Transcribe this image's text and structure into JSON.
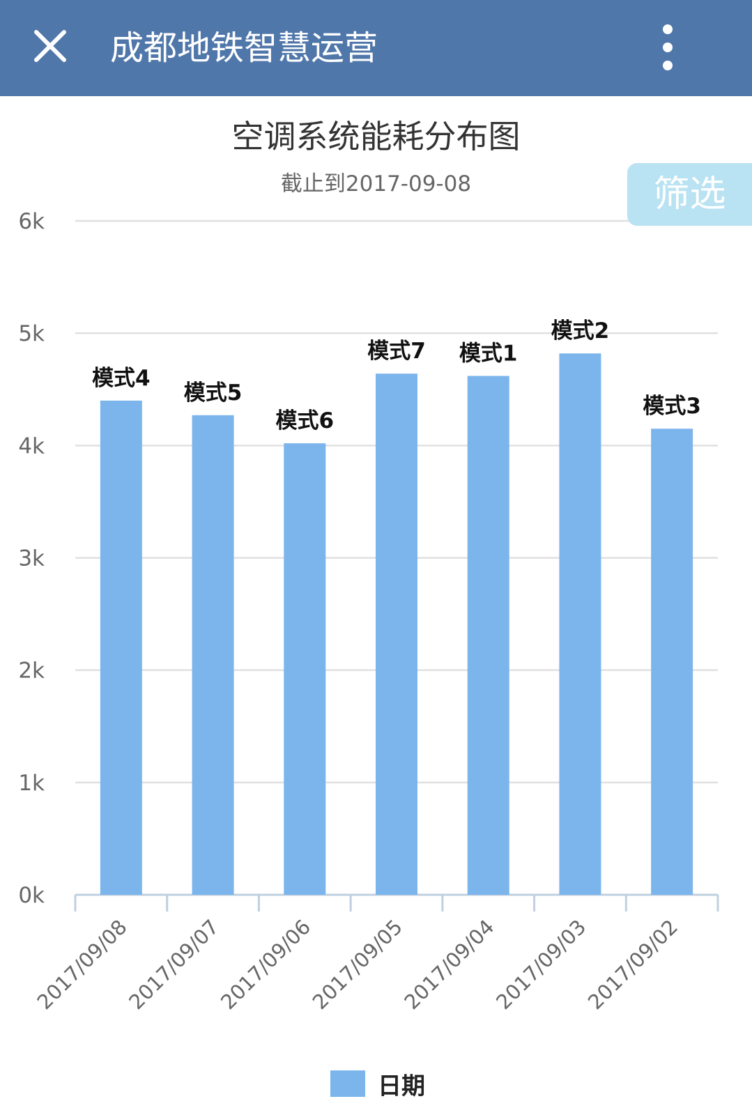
{
  "appbar": {
    "title": "成都地铁智慧运营",
    "close_icon": "close-icon",
    "more_icon": "more-vertical-icon",
    "color": "#5077aa"
  },
  "filter_button": {
    "label": "筛选",
    "color": "#b9e2f2"
  },
  "colors": {
    "bar": "#7cb5ec",
    "grid": "#e0e0e0",
    "axis": "#c0d0e0"
  },
  "chart_data": {
    "type": "bar",
    "title": "空调系统能耗分布图",
    "subtitle": "截止到2017-09-08",
    "categories": [
      "2017/09/08",
      "2017/09/07",
      "2017/09/06",
      "2017/09/05",
      "2017/09/04",
      "2017/09/03",
      "2017/09/02"
    ],
    "series": [
      {
        "name": "日期",
        "values": [
          4400,
          4270,
          4020,
          4640,
          4620,
          4820,
          4150
        ],
        "data_labels": [
          "模式4",
          "模式5",
          "模式6",
          "模式7",
          "模式1",
          "模式2",
          "模式3"
        ]
      }
    ],
    "ylim": [
      0,
      6000
    ],
    "yticks": [
      "0k",
      "1k",
      "2k",
      "3k",
      "4k",
      "5k",
      "6k"
    ],
    "grid": true,
    "legend": "bottom-center"
  }
}
